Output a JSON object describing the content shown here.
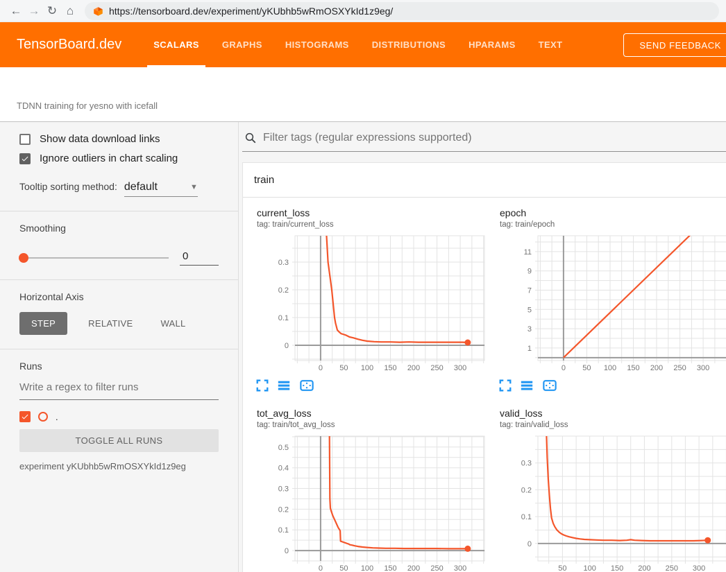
{
  "browser": {
    "url": "https://tensorboard.dev/experiment/yKUbhb5wRmOSXYkId1z9eg/",
    "icons": [
      "back-arrow",
      "forward-arrow",
      "reload",
      "home",
      "tensorboard-favicon"
    ]
  },
  "header": {
    "logo": "TensorBoard.dev",
    "tabs": [
      {
        "label": "SCALARS",
        "active": true
      },
      {
        "label": "GRAPHS",
        "active": false
      },
      {
        "label": "HISTOGRAMS",
        "active": false
      },
      {
        "label": "DISTRIBUTIONS",
        "active": false
      },
      {
        "label": "HPARAMS",
        "active": false
      },
      {
        "label": "TEXT",
        "active": false
      }
    ],
    "feedback_label": "SEND FEEDBACK"
  },
  "experiment_title": "TDNN training for yesno with icefall",
  "sidebar": {
    "show_download_label": "Show data download links",
    "ignore_outliers_label": "Ignore outliers in chart scaling",
    "tooltip_sorting_label": "Tooltip sorting method:",
    "tooltip_sorting_value": "default",
    "smoothing_label": "Smoothing",
    "smoothing_value": "0",
    "horizontal_axis_label": "Horizontal Axis",
    "axis_options": [
      "STEP",
      "RELATIVE",
      "WALL"
    ],
    "axis_selected": "STEP",
    "runs_label": "Runs",
    "runs_filter_placeholder": "Write a regex to filter runs",
    "run_name": ".",
    "toggle_all_label": "TOGGLE ALL RUNS",
    "experiment_id_label": "experiment yKUbhb5wRmOSXYkId1z9eg"
  },
  "main": {
    "filter_placeholder": "Filter tags (regular expressions supported)",
    "section_label": "train"
  },
  "colors": {
    "header_orange": "#ff6f00",
    "run_orange": "#f4562b",
    "icon_blue": "#2196f3",
    "grid": "#e3e3e3",
    "axis": "#9a9a9a",
    "tick_text": "#757575"
  },
  "chart_data": [
    {
      "type": "line",
      "title": "current_loss",
      "tag": "tag: train/current_loss",
      "xlim": [
        -55,
        352
      ],
      "ylim": [
        -0.055,
        0.395
      ],
      "grid_x_step": 25,
      "grid_y_step": 0.05,
      "xticks": [
        0,
        50,
        100,
        150,
        200,
        250,
        300
      ],
      "yticks": [
        0,
        0.1,
        0.2,
        0.3
      ],
      "end_dot": true,
      "series": [
        {
          "name": ".",
          "color": "#f4562b",
          "points": [
            [
              12,
              0.42
            ],
            [
              16,
              0.3
            ],
            [
              20,
              0.25
            ],
            [
              24,
              0.2
            ],
            [
              27,
              0.15
            ],
            [
              30,
              0.1
            ],
            [
              32,
              0.08
            ],
            [
              36,
              0.055
            ],
            [
              40,
              0.048
            ],
            [
              44,
              0.042
            ],
            [
              48,
              0.04
            ],
            [
              55,
              0.036
            ],
            [
              62,
              0.03
            ],
            [
              70,
              0.027
            ],
            [
              80,
              0.022
            ],
            [
              90,
              0.018
            ],
            [
              100,
              0.015
            ],
            [
              115,
              0.013
            ],
            [
              130,
              0.012
            ],
            [
              150,
              0.012
            ],
            [
              170,
              0.011
            ],
            [
              190,
              0.012
            ],
            [
              210,
              0.011
            ],
            [
              230,
              0.011
            ],
            [
              250,
              0.011
            ],
            [
              270,
              0.011
            ],
            [
              290,
              0.011
            ],
            [
              305,
              0.011
            ],
            [
              316,
              0.01
            ]
          ]
        }
      ]
    },
    {
      "type": "line",
      "title": "epoch",
      "tag": "tag: train/epoch",
      "xlim": [
        -55,
        352
      ],
      "ylim": [
        -0.3,
        12.65
      ],
      "grid_x_step": 25,
      "grid_y_step": 1,
      "xticks": [
        0,
        50,
        100,
        150,
        200,
        250,
        300
      ],
      "yticks": [
        1,
        3,
        5,
        7,
        9,
        11
      ],
      "end_dot": false,
      "series": [
        {
          "name": ".",
          "color": "#f4562b",
          "points": [
            [
              0,
              0
            ],
            [
              320,
              14.95
            ]
          ]
        }
      ]
    },
    {
      "type": "line",
      "title": "tot_avg_loss",
      "tag": "tag: train/tot_avg_loss",
      "xlim": [
        -55,
        352
      ],
      "ylim": [
        -0.05,
        0.553
      ],
      "grid_x_step": 25,
      "grid_y_step": 0.05,
      "xticks": [
        0,
        50,
        100,
        150,
        200,
        250,
        300
      ],
      "yticks": [
        0,
        0.1,
        0.2,
        0.3,
        0.4,
        0.5
      ],
      "end_dot": true,
      "series": [
        {
          "name": ".",
          "color": "#f4562b",
          "points": [
            [
              19,
              0.6
            ],
            [
              20,
              0.25
            ],
            [
              21,
              0.205
            ],
            [
              23,
              0.19
            ],
            [
              26,
              0.17
            ],
            [
              29,
              0.155
            ],
            [
              32,
              0.14
            ],
            [
              35,
              0.125
            ],
            [
              38,
              0.11
            ],
            [
              41,
              0.1
            ],
            [
              42,
              0.095
            ],
            [
              43,
              0.045
            ],
            [
              47,
              0.042
            ],
            [
              52,
              0.038
            ],
            [
              57,
              0.034
            ],
            [
              60,
              0.032
            ],
            [
              63,
              0.028
            ],
            [
              68,
              0.026
            ],
            [
              73,
              0.023
            ],
            [
              80,
              0.02
            ],
            [
              90,
              0.017
            ],
            [
              100,
              0.015
            ],
            [
              112,
              0.013
            ],
            [
              125,
              0.012
            ],
            [
              140,
              0.011
            ],
            [
              160,
              0.011
            ],
            [
              180,
              0.01
            ],
            [
              200,
              0.01
            ],
            [
              225,
              0.01
            ],
            [
              250,
              0.01
            ],
            [
              275,
              0.009
            ],
            [
              300,
              0.009
            ],
            [
              316,
              0.009
            ]
          ]
        }
      ]
    },
    {
      "type": "line",
      "title": "valid_loss",
      "tag": "tag: train/valid_loss",
      "xlim": [
        5,
        352
      ],
      "ylim": [
        -0.065,
        0.4
      ],
      "grid_x_step": 25,
      "grid_y_step": 0.05,
      "xticks": [
        50,
        100,
        150,
        200,
        250,
        300
      ],
      "yticks": [
        0,
        0.1,
        0.2,
        0.3
      ],
      "end_dot": true,
      "series": [
        {
          "name": ".",
          "color": "#f4562b",
          "points": [
            [
              20,
              0.45
            ],
            [
              22,
              0.32
            ],
            [
              24,
              0.24
            ],
            [
              26,
              0.18
            ],
            [
              28,
              0.13
            ],
            [
              30,
              0.095
            ],
            [
              33,
              0.075
            ],
            [
              36,
              0.062
            ],
            [
              40,
              0.05
            ],
            [
              44,
              0.042
            ],
            [
              48,
              0.036
            ],
            [
              52,
              0.032
            ],
            [
              57,
              0.028
            ],
            [
              62,
              0.025
            ],
            [
              68,
              0.022
            ],
            [
              75,
              0.019
            ],
            [
              82,
              0.017
            ],
            [
              90,
              0.015
            ],
            [
              100,
              0.014
            ],
            [
              112,
              0.013
            ],
            [
              125,
              0.012
            ],
            [
              140,
              0.012
            ],
            [
              155,
              0.011
            ],
            [
              168,
              0.012
            ],
            [
              175,
              0.014
            ],
            [
              182,
              0.012
            ],
            [
              195,
              0.011
            ],
            [
              210,
              0.01
            ],
            [
              230,
              0.01
            ],
            [
              250,
              0.01
            ],
            [
              270,
              0.01
            ],
            [
              290,
              0.01
            ],
            [
              305,
              0.011
            ],
            [
              316,
              0.012
            ]
          ]
        }
      ]
    }
  ]
}
